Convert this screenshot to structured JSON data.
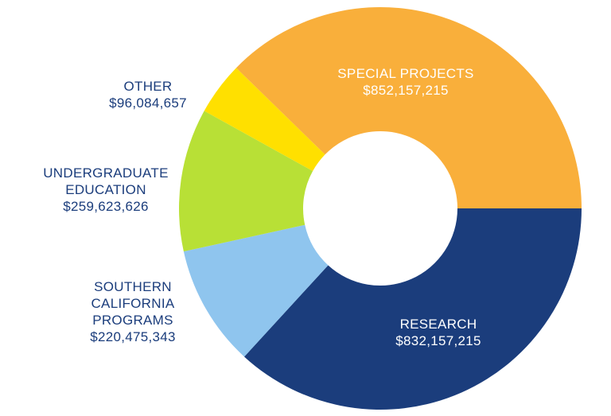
{
  "chart_data": {
    "type": "donut",
    "categories": [
      "RESEARCH",
      "SOUTHERN CALIFORNIA PROGRAMS",
      "UNDERGRADUATE EDUCATION",
      "OTHER",
      "SPECIAL PROJECTS"
    ],
    "values": [
      832157215,
      220475343,
      259623626,
      96084657,
      852157215
    ],
    "value_labels": [
      "$832,157,215",
      "$220,475,343",
      "$259,623,626",
      "$96,084,657",
      "$852,157,215"
    ],
    "colors": [
      "#1b3d7c",
      "#8fc5ee",
      "#b8e036",
      "#ffe000",
      "#f9af3b"
    ]
  }
}
